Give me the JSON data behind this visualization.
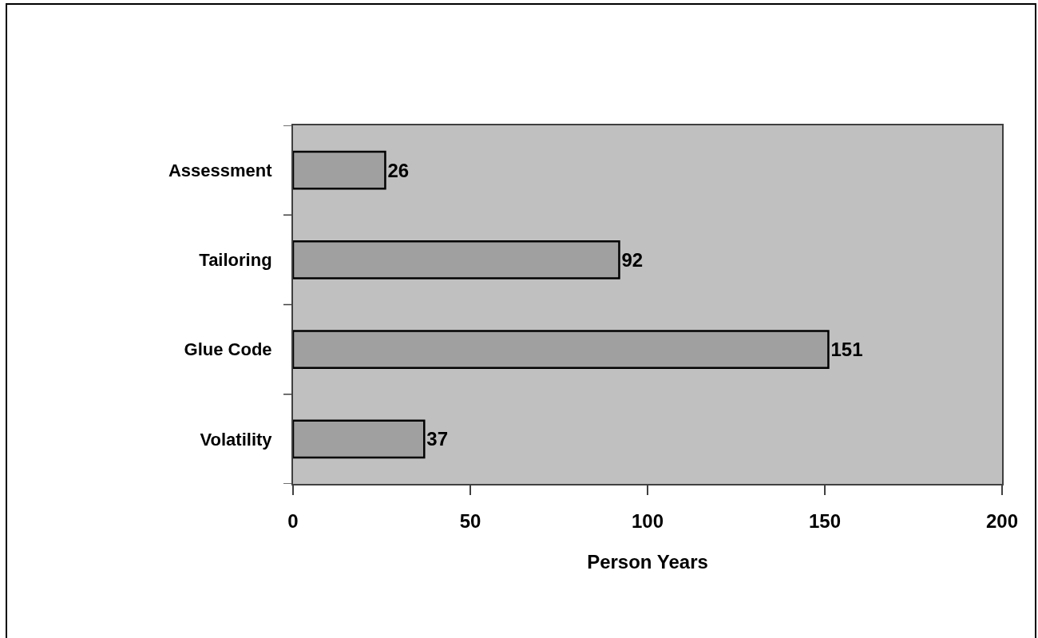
{
  "chart_data": {
    "type": "bar",
    "orientation": "horizontal",
    "categories": [
      "Assessment",
      "Tailoring",
      "Glue Code",
      "Volatility"
    ],
    "values": [
      26,
      92,
      151,
      37
    ],
    "color": "#a0a0a0",
    "xlim": [
      0,
      200
    ],
    "xticks": [
      0,
      50,
      100,
      150,
      200
    ],
    "xlabel": "Person Years",
    "data_labels": true
  }
}
